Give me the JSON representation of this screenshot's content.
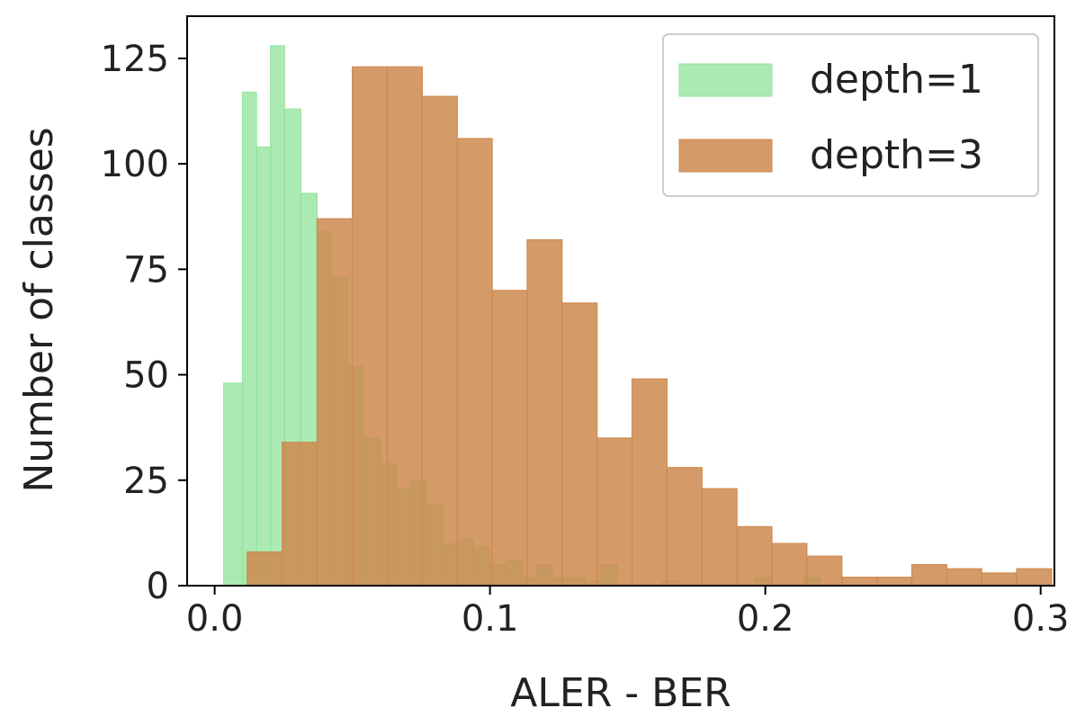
{
  "chart_data": {
    "type": "bar",
    "xlabel": "ALER - BER",
    "ylabel": "Number of classes",
    "xlim": [
      -0.01,
      0.305
    ],
    "ylim": [
      0,
      135
    ],
    "xticks": [
      "0.0",
      "0.1",
      "0.2",
      "0.3"
    ],
    "xtick_values": [
      0.0,
      0.1,
      0.2,
      0.3
    ],
    "yticks": [
      "0",
      "25",
      "50",
      "75",
      "100",
      "125"
    ],
    "ytick_values": [
      0,
      25,
      50,
      75,
      100,
      125
    ],
    "legend": {
      "position": "top-right",
      "entries": [
        "depth=1",
        "depth=3"
      ]
    },
    "grid": false,
    "series": [
      {
        "name": "depth=1",
        "color": "#90e39a",
        "opacity": 0.75,
        "bins": [
          {
            "x0": 0.0033,
            "x1": 0.0101,
            "y": 48
          },
          {
            "x0": 0.0101,
            "x1": 0.0152,
            "y": 117
          },
          {
            "x0": 0.0152,
            "x1": 0.0203,
            "y": 104
          },
          {
            "x0": 0.0203,
            "x1": 0.0254,
            "y": 128
          },
          {
            "x0": 0.0254,
            "x1": 0.0313,
            "y": 113
          },
          {
            "x0": 0.0313,
            "x1": 0.0372,
            "y": 93
          },
          {
            "x0": 0.0372,
            "x1": 0.0423,
            "y": 84
          },
          {
            "x0": 0.0423,
            "x1": 0.0483,
            "y": 73
          },
          {
            "x0": 0.0483,
            "x1": 0.0542,
            "y": 52
          },
          {
            "x0": 0.0542,
            "x1": 0.0601,
            "y": 35
          },
          {
            "x0": 0.0601,
            "x1": 0.066,
            "y": 29
          },
          {
            "x0": 0.066,
            "x1": 0.0711,
            "y": 23
          },
          {
            "x0": 0.0711,
            "x1": 0.077,
            "y": 25
          },
          {
            "x0": 0.077,
            "x1": 0.0829,
            "y": 19
          },
          {
            "x0": 0.0829,
            "x1": 0.088,
            "y": 10
          },
          {
            "x0": 0.088,
            "x1": 0.094,
            "y": 11
          },
          {
            "x0": 0.094,
            "x1": 0.0999,
            "y": 9
          },
          {
            "x0": 0.0999,
            "x1": 0.1058,
            "y": 5
          },
          {
            "x0": 0.1058,
            "x1": 0.1117,
            "y": 6
          },
          {
            "x0": 0.1117,
            "x1": 0.1168,
            "y": 2
          },
          {
            "x0": 0.1168,
            "x1": 0.1227,
            "y": 5
          },
          {
            "x0": 0.1227,
            "x1": 0.1286,
            "y": 2
          },
          {
            "x0": 0.1286,
            "x1": 0.1345,
            "y": 2
          },
          {
            "x0": 0.1345,
            "x1": 0.1404,
            "y": 1
          },
          {
            "x0": 0.1404,
            "x1": 0.1463,
            "y": 5
          },
          {
            "x0": 0.1624,
            "x1": 0.1683,
            "y": 1
          },
          {
            "x0": 0.1963,
            "x1": 0.2022,
            "y": 2
          },
          {
            "x0": 0.2141,
            "x1": 0.22,
            "y": 2
          }
        ]
      },
      {
        "name": "depth=3",
        "color": "#cd8a4f",
        "opacity": 0.85,
        "bins": [
          {
            "x0": 0.0118,
            "x1": 0.0245,
            "y": 8
          },
          {
            "x0": 0.0245,
            "x1": 0.0372,
            "y": 34
          },
          {
            "x0": 0.0372,
            "x1": 0.05,
            "y": 87
          },
          {
            "x0": 0.05,
            "x1": 0.0627,
            "y": 123
          },
          {
            "x0": 0.0627,
            "x1": 0.0754,
            "y": 123
          },
          {
            "x0": 0.0754,
            "x1": 0.0881,
            "y": 116
          },
          {
            "x0": 0.0881,
            "x1": 0.1008,
            "y": 106
          },
          {
            "x0": 0.1008,
            "x1": 0.1135,
            "y": 70
          },
          {
            "x0": 0.1135,
            "x1": 0.1262,
            "y": 82
          },
          {
            "x0": 0.1262,
            "x1": 0.1389,
            "y": 67
          },
          {
            "x0": 0.1389,
            "x1": 0.1516,
            "y": 35
          },
          {
            "x0": 0.1516,
            "x1": 0.1643,
            "y": 49
          },
          {
            "x0": 0.1643,
            "x1": 0.177,
            "y": 28
          },
          {
            "x0": 0.177,
            "x1": 0.1897,
            "y": 23
          },
          {
            "x0": 0.1897,
            "x1": 0.2024,
            "y": 14
          },
          {
            "x0": 0.2024,
            "x1": 0.2151,
            "y": 10
          },
          {
            "x0": 0.2151,
            "x1": 0.2278,
            "y": 7
          },
          {
            "x0": 0.2278,
            "x1": 0.2405,
            "y": 2
          },
          {
            "x0": 0.2405,
            "x1": 0.2532,
            "y": 2
          },
          {
            "x0": 0.2532,
            "x1": 0.2659,
            "y": 5
          },
          {
            "x0": 0.2659,
            "x1": 0.2786,
            "y": 4
          },
          {
            "x0": 0.2786,
            "x1": 0.2913,
            "y": 3
          },
          {
            "x0": 0.2913,
            "x1": 0.304,
            "y": 4
          }
        ]
      }
    ]
  }
}
